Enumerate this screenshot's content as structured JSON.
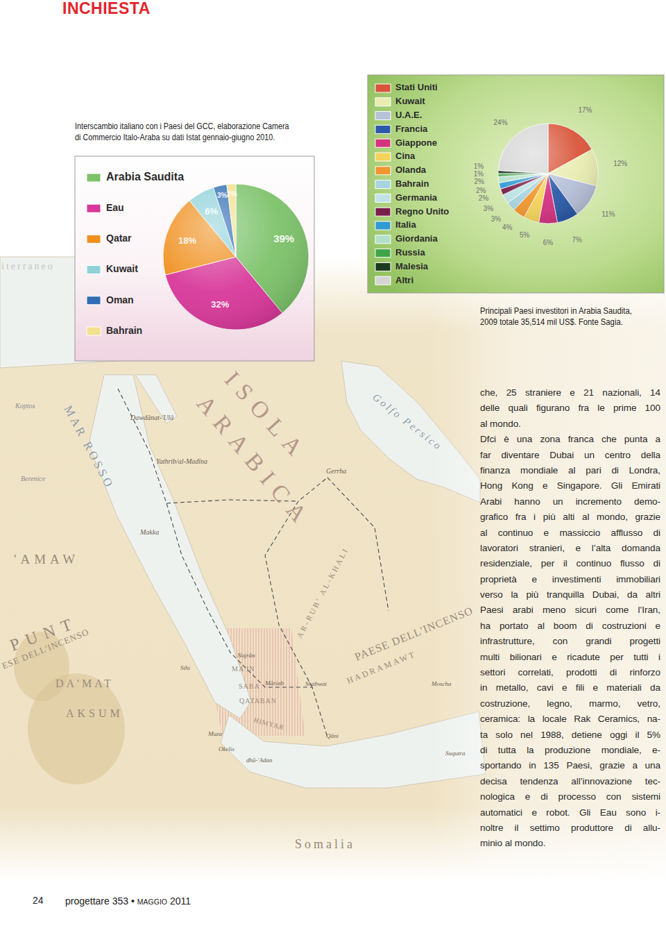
{
  "header": {
    "section": "INCHIESTA"
  },
  "chart_data": [
    {
      "type": "pie",
      "title": "Interscambio italiano con i Paesi del GCC, elaborazione Camera\ndi Commercio Italo-Araba su dati Istat gennaio-giugno 2010.",
      "categories": [
        "Arabia Saudita",
        "Eau",
        "Qatar",
        "Kuwait",
        "Oman",
        "Bahrain"
      ],
      "values": [
        39,
        32,
        18,
        6,
        3,
        2
      ],
      "value_labels": [
        "39%",
        "32%",
        "18%",
        "6%",
        "3%",
        "2%"
      ],
      "colors": [
        "#7cc26a",
        "#d8389a",
        "#f0901f",
        "#8fd2d8",
        "#2f6cb3",
        "#f1e08c"
      ],
      "data_labels": true,
      "legend": "left"
    },
    {
      "type": "pie",
      "title": "Principali Paesi investitori in Arabia Saudita,\n2009 totale 35,514 mil US$. Fonte Sagia.",
      "categories": [
        "Stati Uniti",
        "Kuwait",
        "U.A.E.",
        "Francia",
        "Giappone",
        "Cina",
        "Olanda",
        "Bahrain",
        "Germania",
        "Regno Unito",
        "Italia",
        "Giordania",
        "Russia",
        "Malesia",
        "Altri"
      ],
      "values": [
        17,
        12,
        11,
        7,
        6,
        5,
        4,
        3,
        3,
        2,
        2,
        2,
        1,
        1,
        24
      ],
      "value_labels": [
        "17%",
        "12%",
        "11%",
        "7%",
        "6%",
        "5%",
        "4%",
        "3%",
        "3%",
        "2%",
        "2%",
        "2%",
        "1%",
        "1%",
        "24%"
      ],
      "colors": [
        "#d9553a",
        "#e9edb2",
        "#b7c1d9",
        "#2a5aa8",
        "#d4327f",
        "#f4d35a",
        "#f0962e",
        "#a7d4df",
        "#bfe3e6",
        "#7a1f4a",
        "#2f9ad4",
        "#b3e0c8",
        "#3fa54a",
        "#1b3a20",
        "#d4d4d4"
      ],
      "data_labels": true,
      "legend": "left"
    }
  ],
  "map": {
    "labels": [
      "ISOLA",
      "ARABICA",
      "MAR ROSSO",
      "Golfo Persico",
      "Dawdānat-'Ulā",
      "Yathrib/al-Madīna",
      "Makka",
      "Gerrha",
      "Berenice",
      "Koptos",
      "'AMAW",
      "PUNT",
      "ESE DELL'INCENSO",
      "PAESE DELL'INCENSO",
      "AR-RUB' AL-KHALI",
      "HADRAMAWT",
      "Najrān",
      "MA'IN",
      "SABA",
      "QATABAN",
      "HIMYAR",
      "Māriab",
      "Shabwat",
      "Moscha",
      "Qāni",
      "Suqutra",
      "Sihi",
      "dhū-'Adan",
      "Okelis",
      "DA'MAT",
      "AKSUM",
      "Somalia",
      "Muza",
      "iterraneo"
    ]
  },
  "body": {
    "paragraphs": [
      [
        "che, 25 straniere e 21 nazionali, 14",
        "delle quali figurano fra le prime 100",
        "al mondo."
      ],
      [
        "Dfci è una zona franca che punta a",
        "far diventare Dubai un centro della",
        "finanza mondiale al pari di Londra,",
        "Hong Kong e Singapore. Gli Emirati",
        "Arabi hanno un incremento demo-",
        "grafico fra i più alti al mondo, grazie",
        "al continuo e massiccio afflusso di",
        "lavoratori stranieri, e l’alta domanda",
        "residenziale, per il continuo flusso di",
        "proprietà e investimenti immobiliari",
        "verso la più tranquilla Dubai, da altri",
        "Paesi arabi meno sicuri come l’Iran,",
        "ha portato al boom di costruzioni e",
        "infrastrutture, con grandi progetti",
        "multi bilionari e ricadute per tutti i",
        "settori correlati, prodotti di rinforzo",
        "in metallo, cavi e fili e materiali da",
        "costruzione, legno, marmo, vetro,",
        "ceramica: la locale Rak Ceramics, na-",
        "ta solo nel 1988, detiene oggi il 5%",
        "di tutta la produzione mondiale, e-",
        "sportando in 135 Paesi, grazie a una",
        "decisa tendenza all’innovazione tec-",
        "nologica e di processo con sistemi",
        "automatici e robot. Gli Eau sono i-",
        "noltre il settimo produttore di allu-",
        "minio al mondo."
      ]
    ]
  },
  "footer": {
    "page": "24",
    "publication": "progettare 353 •",
    "issue_month": "MAGGIO",
    "issue_year": "2011"
  }
}
